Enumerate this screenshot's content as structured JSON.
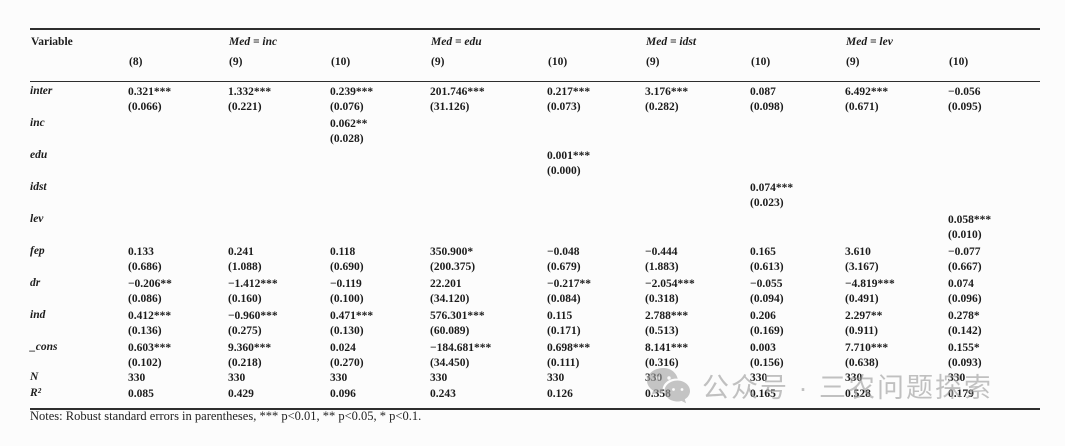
{
  "table": {
    "header": {
      "variable_label": "Variable",
      "groups": [
        "Med = inc",
        "Med = edu",
        "Med = idst",
        "Med = lev"
      ],
      "cols": [
        "(8)",
        "(9)",
        "(10)",
        "(9)",
        "(10)",
        "(9)",
        "(10)",
        "(9)",
        "(10)"
      ]
    },
    "rows": [
      {
        "var": "inter",
        "coef": [
          "0.321***",
          "1.332***",
          "0.239***",
          "201.746***",
          "0.217***",
          "3.176***",
          "0.087",
          "6.492***",
          "−0.056"
        ],
        "se": [
          "(0.066)",
          "(0.221)",
          "(0.076)",
          "(31.126)",
          "(0.073)",
          "(0.282)",
          "(0.098)",
          "(0.671)",
          "(0.095)"
        ]
      },
      {
        "var": "inc",
        "coef": [
          "",
          "",
          "0.062**",
          "",
          "",
          "",
          "",
          "",
          ""
        ],
        "se": [
          "",
          "",
          "(0.028)",
          "",
          "",
          "",
          "",
          "",
          ""
        ]
      },
      {
        "var": "edu",
        "coef": [
          "",
          "",
          "",
          "",
          "0.001***",
          "",
          "",
          "",
          ""
        ],
        "se": [
          "",
          "",
          "",
          "",
          "(0.000)",
          "",
          "",
          "",
          ""
        ]
      },
      {
        "var": "idst",
        "coef": [
          "",
          "",
          "",
          "",
          "",
          "",
          "0.074***",
          "",
          ""
        ],
        "se": [
          "",
          "",
          "",
          "",
          "",
          "",
          "(0.023)",
          "",
          ""
        ]
      },
      {
        "var": "lev",
        "coef": [
          "",
          "",
          "",
          "",
          "",
          "",
          "",
          "",
          "0.058***"
        ],
        "se": [
          "",
          "",
          "",
          "",
          "",
          "",
          "",
          "",
          "(0.010)"
        ]
      },
      {
        "var": "fep",
        "coef": [
          "0.133",
          "0.241",
          "0.118",
          "350.900*",
          "−0.048",
          "−0.444",
          "0.165",
          "3.610",
          "−0.077"
        ],
        "se": [
          "(0.686)",
          "(1.088)",
          "(0.690)",
          "(200.375)",
          "(0.679)",
          "(1.883)",
          "(0.613)",
          "(3.167)",
          "(0.667)"
        ]
      },
      {
        "var": "dr",
        "coef": [
          "−0.206**",
          "−1.412***",
          "−0.119",
          "22.201",
          "−0.217**",
          "−2.054***",
          "−0.055",
          "−4.819***",
          "0.074"
        ],
        "se": [
          "(0.086)",
          "(0.160)",
          "(0.100)",
          "(34.120)",
          "(0.084)",
          "(0.318)",
          "(0.094)",
          "(0.491)",
          "(0.096)"
        ]
      },
      {
        "var": "ind",
        "coef": [
          "0.412***",
          "−0.960***",
          "0.471***",
          "576.301***",
          "0.115",
          "2.788***",
          "0.206",
          "2.297**",
          "0.278*"
        ],
        "se": [
          "(0.136)",
          "(0.275)",
          "(0.130)",
          "(60.089)",
          "(0.171)",
          "(0.513)",
          "(0.169)",
          "(0.911)",
          "(0.142)"
        ]
      },
      {
        "var": "_cons",
        "coef": [
          "0.603***",
          "9.360***",
          "0.024",
          "−184.681***",
          "0.698***",
          "8.141***",
          "0.003",
          "7.710***",
          "0.155*"
        ],
        "se": [
          "(0.102)",
          "(0.218)",
          "(0.270)",
          "(34.450)",
          "(0.111)",
          "(0.316)",
          "(0.156)",
          "(0.638)",
          "(0.093)"
        ]
      }
    ],
    "stats": [
      {
        "var": "N",
        "values": [
          "330",
          "330",
          "330",
          "330",
          "330",
          "330",
          "330",
          "330",
          "330"
        ]
      },
      {
        "var": "R²",
        "values": [
          "0.085",
          "0.429",
          "0.096",
          "0.243",
          "0.126",
          "0.358",
          "0.165",
          "0.528",
          "0.179"
        ]
      }
    ],
    "notes": "Notes: Robust standard errors in parentheses, *** p<0.01, ** p<0.05, * p<0.1."
  },
  "watermark": {
    "icon": "wechat-icon",
    "text": "公众号 · 三农问题探索",
    "color": "#9d9d9d"
  }
}
